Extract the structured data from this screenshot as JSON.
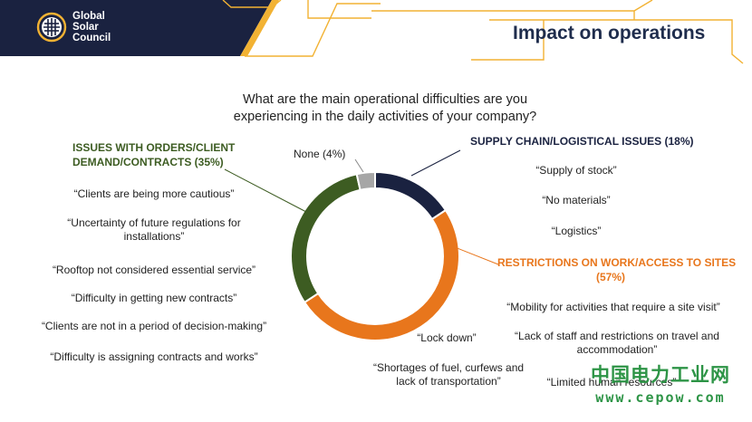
{
  "header": {
    "logo_lines": [
      "Global",
      "Solar",
      "Council"
    ],
    "title": "Impact on operations"
  },
  "question": "What are the main operational difficulties are you experiencing in the daily activities of your company?",
  "chart_data": {
    "type": "pie",
    "variant": "donut",
    "title": "",
    "slices": [
      {
        "label": "SUPPLY CHAIN/LOGISTICAL ISSUES (18%)",
        "value": 18,
        "color": "#1a2240"
      },
      {
        "label": "RESTRICTIONS ON WORK/ACCESS TO SITES (57%)",
        "value": 57,
        "color": "#e8761c"
      },
      {
        "label": "ISSUES WITH ORDERS/CLIENT DEMAND/CONTRACTS (35%)",
        "value": 35,
        "color": "#3d5c22"
      },
      {
        "label": "None (4%)",
        "value": 4,
        "color": "#a6a6a6"
      }
    ]
  },
  "categories": {
    "orders": {
      "title_line1": "ISSUES WITH ORDERS/CLIENT",
      "title_line2": "DEMAND/CONTRACTS (35%)",
      "quotes": [
        "“Clients are being more cautious”",
        "“Uncertainty of future regulations for installations”",
        "“Rooftop not considered essential service”",
        "“Difficulty in getting new contracts”",
        "“Clients are not in a period of decision-making”",
        "“Difficulty is assigning contracts and works”"
      ]
    },
    "supply": {
      "title": "SUPPLY CHAIN/LOGISTICAL ISSUES (18%)",
      "quotes": [
        "“Supply of stock”",
        "“No materials”",
        "“Logistics”"
      ]
    },
    "restrictions": {
      "title_line1": "RESTRICTIONS ON WORK/ACCESS TO SITES",
      "title_line2": "(57%)",
      "quotes": [
        "“Mobility for activities that require a site visit”",
        "“Lack of staff and restrictions on travel and accommodation”",
        "“Lock down”",
        "“Shortages of fuel, curfews and lack of transportation”",
        "“Limited human resources”"
      ]
    },
    "none": {
      "label": "None (4%)"
    }
  },
  "watermark": {
    "cn": "中国电力工业网",
    "url": "www.cepow.com"
  },
  "colors": {
    "navy": "#1a2240",
    "orange": "#e8761c",
    "green": "#3d5c22",
    "gray": "#a6a6a6",
    "gold": "#f2b233"
  }
}
